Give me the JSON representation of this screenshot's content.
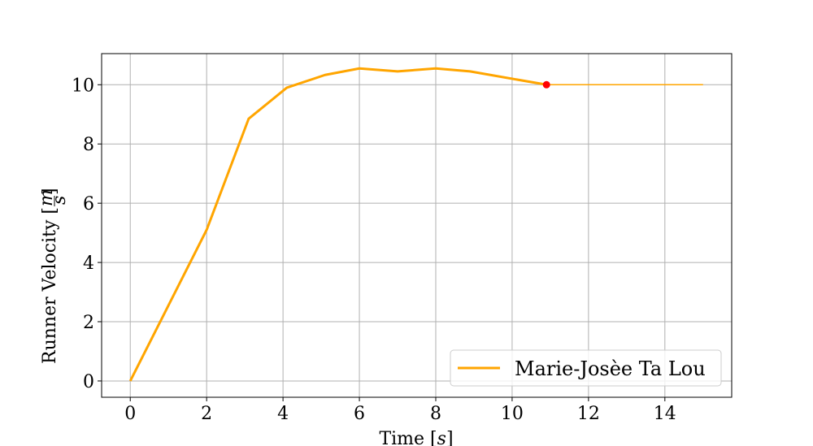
{
  "chart_data": {
    "type": "line",
    "title": "",
    "xlabel": "Time [s]",
    "ylabel": "Runner Velocity [m/s]",
    "xlabel_parts": {
      "text": "Time [",
      "unit": "s",
      "close": "]"
    },
    "ylabel_parts": {
      "text": "Runner Velocity [",
      "num": "m",
      "den": "s",
      "close": "]"
    },
    "xlim": [
      -0.75,
      15.75
    ],
    "ylim": [
      -0.55,
      11.05
    ],
    "xticks": [
      0,
      2,
      4,
      6,
      8,
      10,
      12,
      14
    ],
    "yticks": [
      0,
      2,
      4,
      6,
      8,
      10
    ],
    "grid": true,
    "legend": {
      "placement": "bottom-right"
    },
    "series": [
      {
        "name": "Marie-Josèe Ta Lou",
        "color": "#FFA500",
        "x": [
          0,
          2,
          3.1,
          4.1,
          5.1,
          6.0,
          7.0,
          8.0,
          8.9,
          10.9
        ],
        "y": [
          0,
          5.1,
          8.85,
          9.9,
          10.33,
          10.55,
          10.45,
          10.55,
          10.45,
          10.0
        ]
      }
    ],
    "extension": {
      "color": "#FFA500",
      "x": [
        10.9,
        15.0
      ],
      "y": [
        10.0,
        10.0
      ]
    },
    "marker": {
      "color": "#FF0000",
      "x": 10.9,
      "y": 10.0
    }
  }
}
